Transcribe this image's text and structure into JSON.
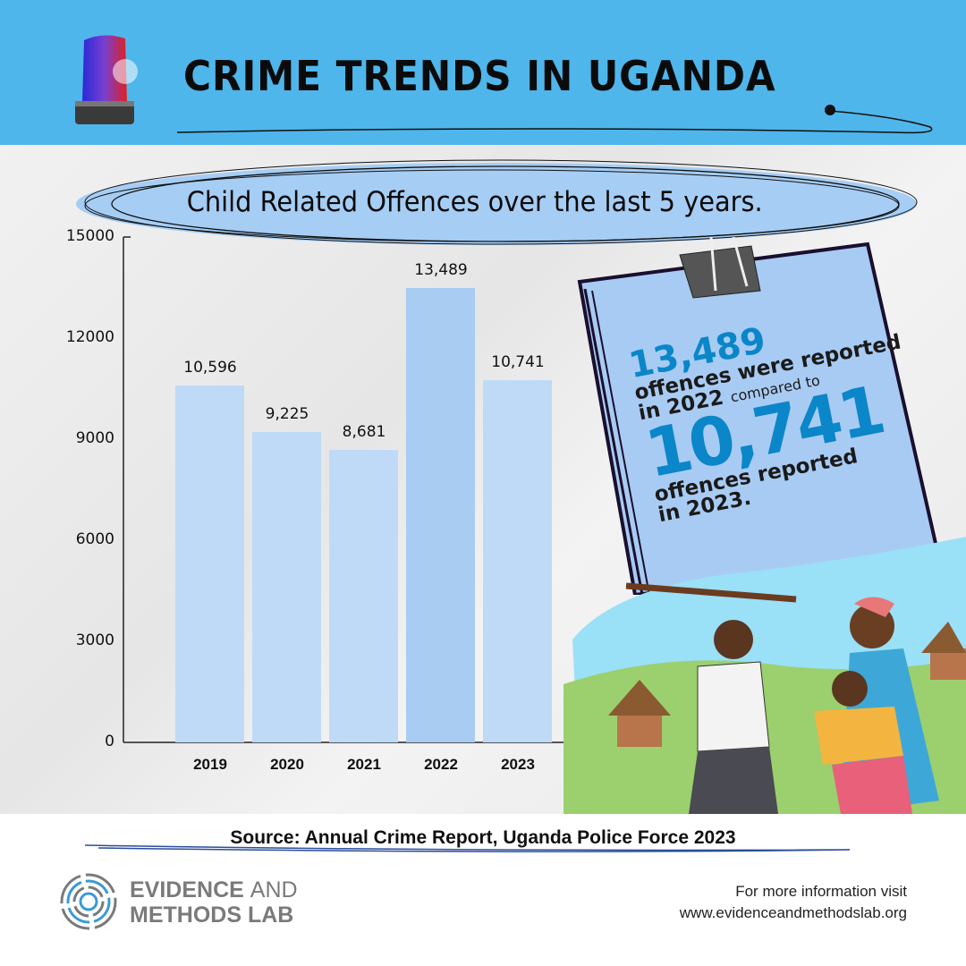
{
  "header": {
    "title": "CRIME TRENDS IN UGANDA"
  },
  "colors": {
    "header_bg": "#4fb6eb",
    "bar": "#bfdaf6",
    "bar_highlight": "#a9ccf2",
    "accent": "#0a86c9"
  },
  "chart_data": {
    "type": "bar",
    "title": "Child  Related Offences over the last 5 years.",
    "categories": [
      "2019",
      "2020",
      "2021",
      "2022",
      "2023"
    ],
    "values": [
      10596,
      9225,
      8681,
      13489,
      10741
    ],
    "value_labels": [
      "10,596",
      "9,225",
      "8,681",
      "13,489",
      "10,741"
    ],
    "yticks": [
      "0",
      "3000",
      "6000",
      "9000",
      "12000",
      "15000"
    ],
    "ylim": [
      0,
      15000
    ],
    "xlabel": "",
    "ylabel": "",
    "grid": false
  },
  "note": {
    "num1": "13,489",
    "line1": "offences were reported",
    "line2a": "in 2022",
    "line2b": "compared to",
    "num2": "10,741",
    "line3": "offences reported",
    "line4": "in 2023."
  },
  "footer": {
    "source": "Source: Annual Crime Report, Uganda Police Force 2023",
    "logo_line1a": "EVIDENCE",
    "logo_line1b": "AND",
    "logo_line2": "METHODS LAB",
    "info_label": "For more information visit",
    "info_url": "www.evidenceandmethodslab.org"
  }
}
